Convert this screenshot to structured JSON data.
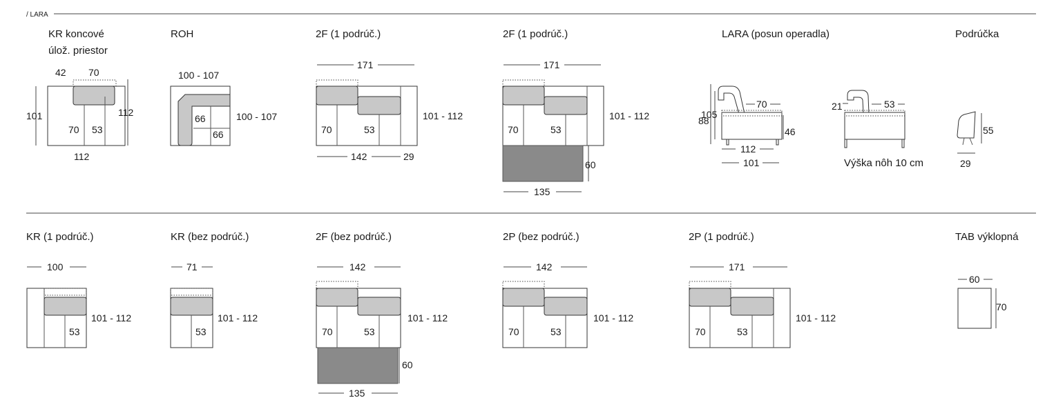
{
  "section_label": "/ LARA",
  "modules": {
    "kr_koncove": {
      "title": "KR koncové",
      "subtitle": "úlož. priestor",
      "dims": [
        "42",
        "70",
        "101",
        "112",
        "70",
        "53",
        "112"
      ]
    },
    "roh": {
      "title": "ROH",
      "dims": [
        "100 - 107",
        "100 - 107",
        "66",
        "66"
      ]
    },
    "f2_1": {
      "title": "2F (1 podrúč.)",
      "dims": [
        "171",
        "101 - 112",
        "70",
        "53",
        "142",
        "29"
      ]
    },
    "f2_2": {
      "title": "2F (1 podrúč.)",
      "dims": [
        "171",
        "101 - 112",
        "70",
        "53",
        "60",
        "135"
      ]
    },
    "lara_posun": {
      "title": "LARA (posun operadla)",
      "dims": [
        "88",
        "105",
        "70",
        "46",
        "112",
        "101",
        "21",
        "53"
      ],
      "note": "Výška nôh 10 cm"
    },
    "podrucka": {
      "title": "Podrúčka",
      "dims": [
        "55",
        "29"
      ]
    },
    "kr_1": {
      "title": "KR (1 podrúč.)",
      "dims": [
        "100",
        "101 - 112",
        "53"
      ]
    },
    "kr_bez": {
      "title": "KR (bez podrúč.)",
      "dims": [
        "71",
        "101 - 112",
        "53"
      ]
    },
    "f2_bez": {
      "title": "2F (bez podrúč.)",
      "dims": [
        "142",
        "101 - 112",
        "70",
        "53",
        "60",
        "135"
      ]
    },
    "p2_bez": {
      "title": "2P (bez podrúč.)",
      "dims": [
        "142",
        "101 - 112",
        "70",
        "53"
      ]
    },
    "p2_1": {
      "title": "2P (1 podrúč.)",
      "dims": [
        "171",
        "101 - 112",
        "70",
        "53"
      ]
    },
    "tab": {
      "title": "TAB výklopná",
      "dims": [
        "60",
        "70"
      ]
    }
  },
  "colors": {
    "line": "#333333",
    "cushion": "#c8c8c8",
    "ottoman": "#8a8a8a"
  }
}
